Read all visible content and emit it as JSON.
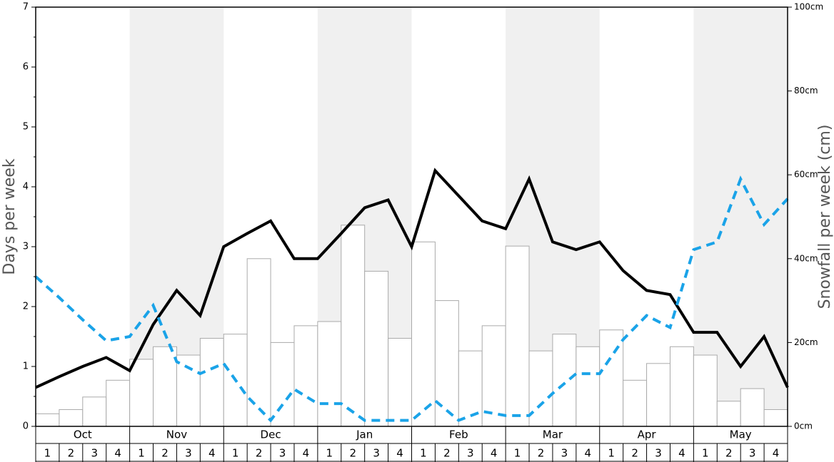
{
  "chart_data": {
    "type": "bar",
    "ylabel": "Days per week",
    "y2label": "Snowfall per week (cm)",
    "months": [
      "Oct",
      "Nov",
      "Dec",
      "Jan",
      "Feb",
      "Mar",
      "Apr",
      "May"
    ],
    "week_labels": [
      "1",
      "2",
      "3",
      "4"
    ],
    "ylim": [
      0,
      7
    ],
    "yticks": [
      0,
      1,
      2,
      3,
      4,
      5,
      6,
      7
    ],
    "y2lim": [
      0,
      100
    ],
    "y2ticks": [
      {
        "value": 0,
        "label": "0cm"
      },
      {
        "value": 20,
        "label": "20cm"
      },
      {
        "value": 40,
        "label": "40cm"
      },
      {
        "value": 60,
        "label": "60cm"
      },
      {
        "value": 80,
        "label": "80cm"
      },
      {
        "value": 100,
        "label": "100cm"
      }
    ],
    "shade_color": "#f0f0f0",
    "bars": {
      "axis": "y2",
      "color": "#ffffff",
      "edge_color": "#aaaaaa",
      "values": [
        3,
        4,
        7,
        11,
        16,
        19,
        17,
        21,
        22,
        40,
        20,
        24,
        25,
        48,
        37,
        21,
        44,
        30,
        18,
        24,
        43,
        18,
        22,
        19,
        23,
        11,
        15,
        19,
        17,
        6,
        9,
        4
      ]
    },
    "lines": [
      {
        "color": "#000000",
        "style": "solid",
        "values": [
          0.65,
          0.83,
          1.0,
          1.15,
          0.93,
          1.7,
          2.27,
          1.85,
          3.0,
          3.22,
          3.43,
          2.8,
          2.8,
          3.22,
          3.65,
          3.78,
          3.0,
          4.27,
          3.85,
          3.43,
          3.3,
          4.13,
          3.08,
          2.95,
          3.08,
          2.6,
          2.27,
          2.2,
          1.57,
          1.57,
          1.0,
          1.5,
          0.65
        ]
      },
      {
        "color": "#1aa3e8",
        "style": "dashed",
        "values": [
          2.5,
          2.15,
          1.78,
          1.43,
          1.5,
          2.02,
          1.08,
          0.88,
          1.05,
          0.5,
          0.1,
          0.62,
          0.38,
          0.38,
          0.1,
          0.1,
          0.1,
          0.43,
          0.1,
          0.25,
          0.18,
          0.18,
          0.55,
          0.88,
          0.88,
          1.45,
          1.85,
          1.65,
          2.95,
          3.08,
          4.13,
          3.37,
          3.8
        ]
      }
    ]
  }
}
